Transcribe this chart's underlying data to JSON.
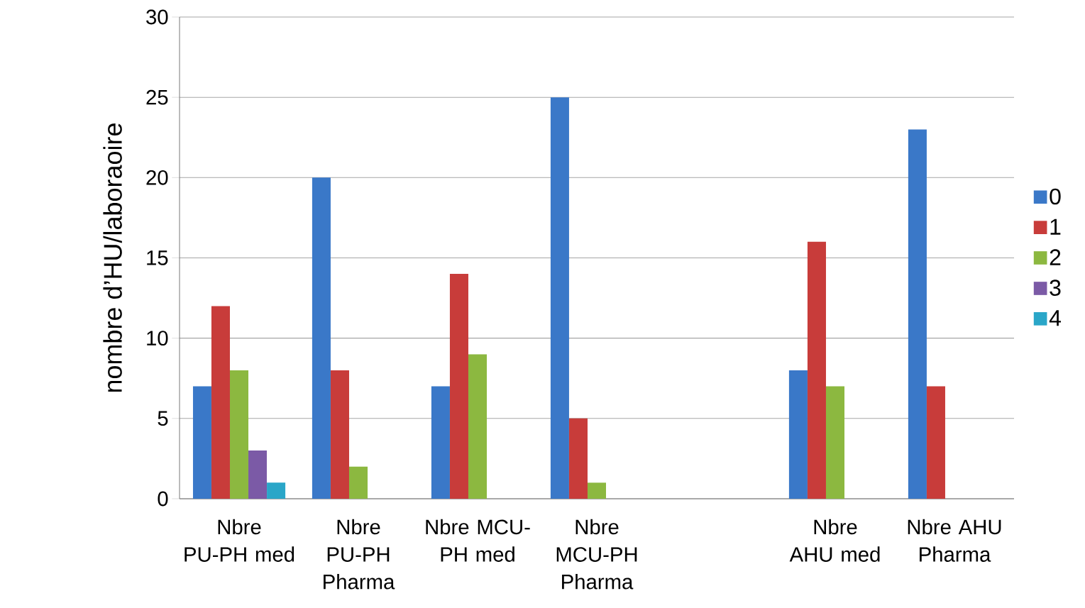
{
  "chart_data": {
    "type": "bar",
    "ylabel": "nombre d’HU/laboraoire",
    "categories": [
      "Nbre PU-PH med",
      "Nbre PU-PH Pharma",
      "Nbre MCU-PH med",
      "Nbre MCU-PH Pharma",
      null,
      "Nbre AHU med",
      "Nbre AHU Pharma"
    ],
    "series": [
      {
        "name": "0",
        "color": "#3a78c8",
        "values": [
          7,
          20,
          7,
          25,
          null,
          8,
          23
        ]
      },
      {
        "name": "1",
        "color": "#c83c3a",
        "values": [
          12,
          8,
          14,
          5,
          null,
          16,
          7
        ]
      },
      {
        "name": "2",
        "color": "#8cb840",
        "values": [
          8,
          2,
          9,
          1,
          null,
          7,
          null
        ]
      },
      {
        "name": "3",
        "color": "#7b5aa6",
        "values": [
          3,
          null,
          null,
          null,
          null,
          null,
          null
        ]
      },
      {
        "name": "4",
        "color": "#2aa6c8",
        "values": [
          1,
          null,
          null,
          null,
          null,
          null,
          null
        ]
      }
    ],
    "ylim": [
      0,
      30
    ],
    "yticks": [
      0,
      5,
      10,
      15,
      20,
      25,
      30
    ],
    "grid": "y",
    "legend": "right"
  }
}
